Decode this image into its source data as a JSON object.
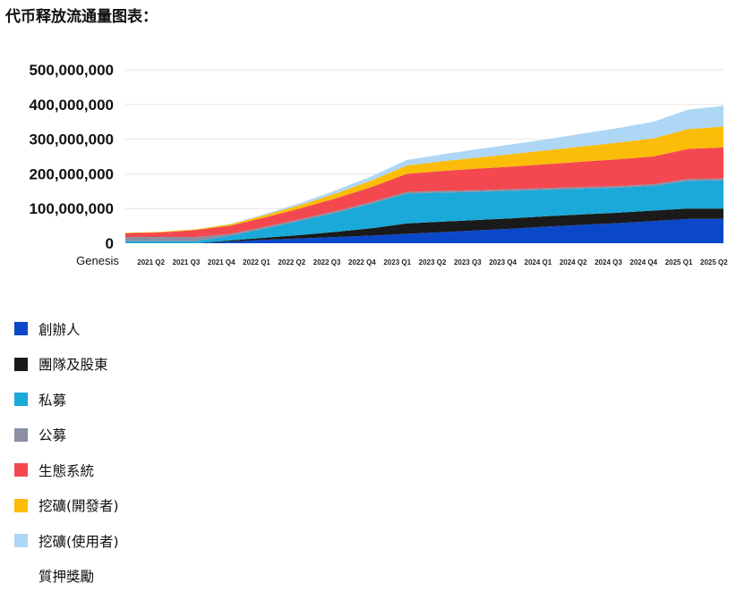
{
  "page": {
    "title": "代币释放流通量图表："
  },
  "chart_data": {
    "type": "area",
    "stacked": true,
    "title": "",
    "xlabel": "",
    "ylabel": "",
    "ylim": [
      0,
      500000000
    ],
    "yticks": [
      {
        "value": 0,
        "label": "0"
      },
      {
        "value": 100000000,
        "label": "100,000,000"
      },
      {
        "value": 200000000,
        "label": "200,000,000"
      },
      {
        "value": 300000000,
        "label": "300,000,000"
      },
      {
        "value": 400000000,
        "label": "400,000,000"
      },
      {
        "value": 500000000,
        "label": "500,000,000"
      }
    ],
    "grid": true,
    "legend_position": "bottom-left",
    "categories": [
      "Genesis",
      "2021 Q2",
      "2021 Q3",
      "2021 Q4",
      "2022 Q1",
      "2022 Q2",
      "2022 Q3",
      "2022 Q4",
      "2023 Q1",
      "2023 Q2",
      "2023 Q3",
      "2023 Q4",
      "2024 Q1",
      "2024 Q2",
      "2024 Q3",
      "2024 Q4",
      "2025 Q1",
      "2025 Q2"
    ],
    "series": [
      {
        "name": "創辦人",
        "color": "#0a47c9",
        "values": [
          0,
          0,
          0,
          5000000,
          10000000,
          14000000,
          18000000,
          22000000,
          27000000,
          32000000,
          37000000,
          42000000,
          48000000,
          53000000,
          58000000,
          64000000,
          70000000,
          70000000
        ]
      },
      {
        "name": "團隊及股東",
        "color": "#1a1a1a",
        "values": [
          0,
          0,
          0,
          3000000,
          6000000,
          10000000,
          15000000,
          21000000,
          30000000,
          30000000,
          30000000,
          30000000,
          30000000,
          30000000,
          30000000,
          30000000,
          30000000,
          30000000
        ]
      },
      {
        "name": "私募",
        "color": "#1aa9d8",
        "values": [
          6000000,
          6000000,
          6000000,
          14000000,
          27000000,
          41000000,
          55000000,
          71000000,
          86000000,
          84000000,
          81000000,
          79000000,
          76000000,
          74000000,
          72000000,
          71000000,
          80000000,
          81000000
        ]
      },
      {
        "name": "公募",
        "color": "#8a8fa3",
        "values": [
          12000000,
          12000000,
          12000000,
          5000000,
          5000000,
          5000000,
          5000000,
          5000000,
          5000000,
          5000000,
          5000000,
          5000000,
          5000000,
          5000000,
          5000000,
          5000000,
          5000000,
          5000000
        ]
      },
      {
        "name": "生態系統",
        "color": "#f44850",
        "values": [
          11000000,
          13000000,
          20000000,
          24000000,
          27000000,
          31000000,
          37000000,
          43000000,
          52000000,
          57000000,
          62000000,
          65000000,
          69000000,
          73000000,
          77000000,
          80000000,
          87000000,
          90000000
        ]
      },
      {
        "name": "挖礦(開發者)",
        "color": "#fbbd07",
        "values": [
          1000000,
          2000000,
          2000000,
          4000000,
          7000000,
          10000000,
          14000000,
          19000000,
          24000000,
          28000000,
          32000000,
          36000000,
          40000000,
          44000000,
          48000000,
          52000000,
          57000000,
          60000000
        ]
      },
      {
        "name": "挖礦(使用者)",
        "color": "#aed6f5",
        "values": [
          0,
          0,
          0,
          1000000,
          3000000,
          6000000,
          9000000,
          12000000,
          16000000,
          20000000,
          24000000,
          28000000,
          32000000,
          37000000,
          42000000,
          48000000,
          56000000,
          60000000
        ]
      },
      {
        "name": "質押獎勵",
        "color": "#ffffff",
        "values": [
          0,
          0,
          0,
          0,
          0,
          0,
          0,
          0,
          0,
          0,
          0,
          0,
          0,
          0,
          0,
          0,
          0,
          0
        ]
      }
    ]
  }
}
